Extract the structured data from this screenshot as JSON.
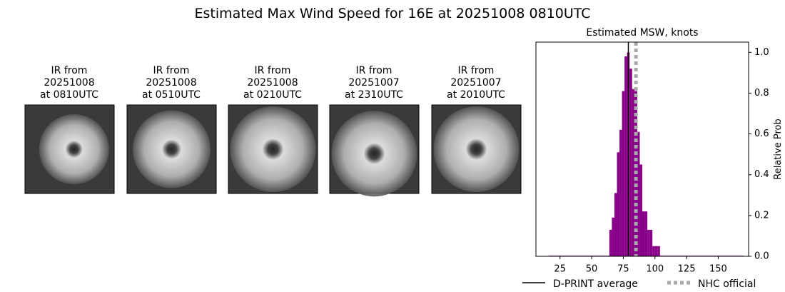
{
  "title": "Estimated Max Wind Speed for 16E at 20251008 0810UTC",
  "panels": [
    {
      "lines": [
        "IR from",
        "20251008",
        "at 0810UTC"
      ]
    },
    {
      "lines": [
        "IR from",
        "20251008",
        "at 0510UTC"
      ]
    },
    {
      "lines": [
        "IR from",
        "20251008",
        "at 0210UTC"
      ]
    },
    {
      "lines": [
        "IR from",
        "20251007",
        "at 2310UTC"
      ]
    },
    {
      "lines": [
        "IR from",
        "20251007",
        "at 2010UTC"
      ]
    }
  ],
  "chart_data": {
    "type": "histogram",
    "title": "Estimated MSW, knots",
    "ylabel": "Relative Prob",
    "color": "#880088",
    "bins": [
      16,
      64,
      66,
      68,
      70,
      72,
      74,
      76,
      78,
      80,
      82,
      84,
      86,
      88,
      90,
      92,
      94,
      96,
      98,
      100,
      102,
      104,
      170
    ],
    "values": [
      0.003,
      0.13,
      0.19,
      0.31,
      0.51,
      0.62,
      0.81,
      0.98,
      1.0,
      0.92,
      0.82,
      0.81,
      0.61,
      0.45,
      0.22,
      0.22,
      0.13,
      0.13,
      0.05,
      0.05,
      0.05,
      0.003
    ],
    "xlim": [
      6,
      174
    ],
    "ylim": [
      0,
      1.05
    ],
    "xticks": [
      25,
      50,
      75,
      100,
      125,
      150
    ],
    "yticks": [
      0.0,
      0.2,
      0.4,
      0.6,
      0.8,
      {
        "value": 1.0,
        "label": "1.0"
      }
    ],
    "lines": [
      {
        "name": "D-PRINT average",
        "value": 79,
        "color": "#000000",
        "style": "solid"
      },
      {
        "name": "NHC official",
        "value": 85,
        "color": "#aaaaaa",
        "style": "dotted"
      }
    ]
  }
}
